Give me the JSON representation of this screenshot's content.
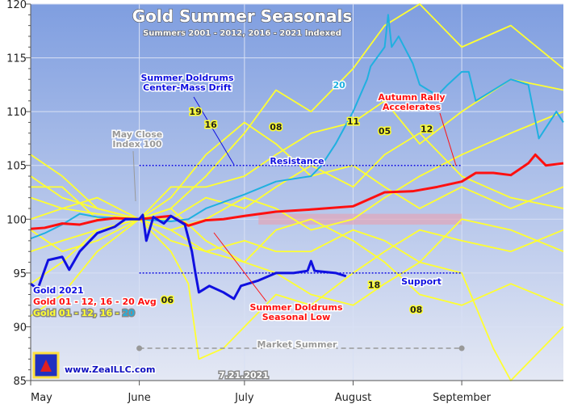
{
  "chart_data": {
    "type": "line",
    "title": "Gold Summer Seasonals",
    "subtitle": "Summers 2001 - 2012, 2016 - 2021 Indexed",
    "x_ticks": [
      {
        "date": "05-01",
        "label": "May"
      },
      {
        "date": "06-01",
        "label": "June"
      },
      {
        "date": "07-01",
        "label": "July"
      },
      {
        "date": "08-01",
        "label": "August"
      },
      {
        "date": "09-01",
        "label": "September"
      }
    ],
    "xlim": [
      "05-01",
      "09-30"
    ],
    "ylim": [
      85,
      120
    ],
    "y_ticks": [
      85,
      90,
      95,
      100,
      105,
      110,
      115,
      120
    ],
    "grid": true,
    "legend_position": "bottom-left",
    "legend": [
      {
        "text": "Gold 2021",
        "color": "#1010e0"
      },
      {
        "text": "Gold 01 - 12, 16 - 20 Avg",
        "color": "#ff1010"
      },
      {
        "text": "Gold 01 - 12, 16 - ",
        "suffix": "20",
        "color": "#ffff30",
        "suffix_color": "#20b0e0"
      }
    ],
    "series": [
      {
        "name": "Gold 2021",
        "color": "#1010e0",
        "points": [
          [
            "05-01",
            94
          ],
          [
            "05-03",
            93.5
          ],
          [
            "05-06",
            96.2
          ],
          [
            "05-10",
            96.5
          ],
          [
            "05-12",
            95.3
          ],
          [
            "05-15",
            97
          ],
          [
            "05-20",
            98.7
          ],
          [
            "05-25",
            99.3
          ],
          [
            "05-28",
            100
          ],
          [
            "06-01",
            100
          ],
          [
            "06-02",
            100.4
          ],
          [
            "06-03",
            98
          ],
          [
            "06-05",
            100.2
          ],
          [
            "06-08",
            99.6
          ],
          [
            "06-10",
            100.3
          ],
          [
            "06-14",
            99.5
          ],
          [
            "06-16",
            97
          ],
          [
            "06-17",
            95
          ],
          [
            "06-18",
            93.2
          ],
          [
            "06-21",
            93.8
          ],
          [
            "06-25",
            93.2
          ],
          [
            "06-28",
            92.6
          ],
          [
            "06-30",
            93.8
          ],
          [
            "07-05",
            94.3
          ],
          [
            "07-10",
            95
          ],
          [
            "07-15",
            95
          ],
          [
            "07-19",
            95.2
          ],
          [
            "07-20",
            96.1
          ],
          [
            "07-21",
            95.2
          ],
          [
            "07-27",
            95
          ],
          [
            "07-30",
            94.7
          ]
        ]
      },
      {
        "name": "Gold 01 - 12, 16 - 20 Avg",
        "color": "#ff1010",
        "points": [
          [
            "05-01",
            99.1
          ],
          [
            "05-05",
            99.2
          ],
          [
            "05-10",
            99.6
          ],
          [
            "05-15",
            99.5
          ],
          [
            "05-20",
            99.9
          ],
          [
            "05-25",
            100.1
          ],
          [
            "06-01",
            100
          ],
          [
            "06-10",
            100.3
          ],
          [
            "06-15",
            99.4
          ],
          [
            "06-20",
            99.9
          ],
          [
            "06-25",
            100
          ],
          [
            "07-01",
            100.3
          ],
          [
            "07-10",
            100.7
          ],
          [
            "07-20",
            100.9
          ],
          [
            "08-01",
            101.2
          ],
          [
            "08-10",
            102.5
          ],
          [
            "08-18",
            102.6
          ],
          [
            "08-25",
            103
          ],
          [
            "09-01",
            103.5
          ],
          [
            "09-05",
            104.3
          ],
          [
            "09-10",
            104.3
          ],
          [
            "09-15",
            104.1
          ],
          [
            "09-20",
            105.2
          ],
          [
            "09-22",
            106
          ],
          [
            "09-25",
            105
          ],
          [
            "09-30",
            105.2
          ]
        ]
      },
      {
        "name": "20",
        "color": "#20b0e0",
        "points": [
          [
            "05-01",
            98.2
          ],
          [
            "05-05",
            98.7
          ],
          [
            "05-10",
            99.5
          ],
          [
            "05-15",
            100.5
          ],
          [
            "05-20",
            100.2
          ],
          [
            "06-01",
            100
          ],
          [
            "06-10",
            99.8
          ],
          [
            "06-15",
            100
          ],
          [
            "06-20",
            101
          ],
          [
            "07-01",
            102.3
          ],
          [
            "07-10",
            103.5
          ],
          [
            "07-20",
            104
          ],
          [
            "07-23",
            105
          ],
          [
            "07-27",
            107
          ],
          [
            "08-01",
            110
          ],
          [
            "08-05",
            113
          ],
          [
            "08-06",
            114.2
          ],
          [
            "08-10",
            116
          ],
          [
            "08-11",
            119
          ],
          [
            "08-12",
            116
          ],
          [
            "08-14",
            117
          ],
          [
            "08-18",
            114.5
          ],
          [
            "08-20",
            112.5
          ],
          [
            "08-25",
            111.5
          ],
          [
            "08-28",
            112.5
          ],
          [
            "09-01",
            113.7
          ],
          [
            "09-03",
            113.7
          ],
          [
            "09-05",
            111
          ],
          [
            "09-15",
            113
          ],
          [
            "09-20",
            112.5
          ],
          [
            "09-23",
            107.5
          ],
          [
            "09-28",
            110
          ],
          [
            "09-30",
            109
          ]
        ]
      },
      {
        "color": "#ffff30",
        "points": [
          [
            "05-01",
            102
          ],
          [
            "05-10",
            101
          ],
          [
            "05-20",
            100.5
          ],
          [
            "06-01",
            100
          ],
          [
            "06-10",
            101
          ],
          [
            "06-20",
            104
          ],
          [
            "07-01",
            108
          ],
          [
            "07-10",
            112
          ],
          [
            "07-20",
            110
          ],
          [
            "08-01",
            114
          ],
          [
            "08-10",
            118
          ],
          [
            "08-20",
            120
          ],
          [
            "09-01",
            116
          ],
          [
            "09-15",
            118
          ],
          [
            "09-30",
            114
          ]
        ]
      },
      {
        "color": "#ffff30",
        "points": [
          [
            "05-01",
            97
          ],
          [
            "05-10",
            98
          ],
          [
            "05-20",
            99
          ],
          [
            "06-01",
            100
          ],
          [
            "06-10",
            98
          ],
          [
            "06-20",
            97
          ],
          [
            "07-01",
            96
          ],
          [
            "07-10",
            99
          ],
          [
            "07-20",
            100
          ],
          [
            "08-01",
            98
          ],
          [
            "08-10",
            96
          ],
          [
            "08-20",
            93
          ],
          [
            "09-01",
            92
          ],
          [
            "09-15",
            94
          ],
          [
            "09-30",
            92
          ]
        ]
      },
      {
        "color": "#ffff30",
        "points": [
          [
            "05-01",
            104
          ],
          [
            "05-10",
            102
          ],
          [
            "05-20",
            101
          ],
          [
            "06-01",
            100
          ],
          [
            "06-10",
            102
          ],
          [
            "06-20",
            106
          ],
          [
            "07-01",
            109
          ],
          [
            "07-10",
            107
          ],
          [
            "07-20",
            104
          ],
          [
            "08-01",
            105
          ],
          [
            "08-10",
            103
          ],
          [
            "08-20",
            101
          ],
          [
            "09-01",
            103
          ],
          [
            "09-15",
            101
          ],
          [
            "09-30",
            103
          ]
        ]
      },
      {
        "color": "#ffff30",
        "points": [
          [
            "05-01",
            94
          ],
          [
            "05-10",
            96
          ],
          [
            "05-20",
            99
          ],
          [
            "06-01",
            100
          ],
          [
            "06-10",
            97
          ],
          [
            "06-15",
            94
          ],
          [
            "06-18",
            87
          ],
          [
            "06-25",
            88
          ],
          [
            "07-01",
            90
          ],
          [
            "07-10",
            93
          ],
          [
            "07-20",
            92
          ],
          [
            "08-01",
            95
          ],
          [
            "08-10",
            97
          ],
          [
            "08-20",
            99
          ],
          [
            "09-01",
            98
          ],
          [
            "09-15",
            97
          ],
          [
            "09-30",
            99
          ]
        ]
      },
      {
        "color": "#ffff30",
        "points": [
          [
            "05-01",
            106
          ],
          [
            "05-10",
            104
          ],
          [
            "05-20",
            101
          ],
          [
            "06-01",
            100
          ],
          [
            "06-10",
            99
          ],
          [
            "06-20",
            100
          ],
          [
            "07-01",
            102
          ],
          [
            "07-10",
            101
          ],
          [
            "07-20",
            99
          ],
          [
            "08-01",
            100
          ],
          [
            "08-10",
            102
          ],
          [
            "08-20",
            104
          ],
          [
            "09-01",
            106
          ],
          [
            "09-15",
            108
          ],
          [
            "09-30",
            110
          ]
        ]
      },
      {
        "color": "#ffff30",
        "points": [
          [
            "05-01",
            91
          ],
          [
            "05-10",
            93
          ],
          [
            "05-20",
            97
          ],
          [
            "06-01",
            100
          ],
          [
            "06-10",
            101
          ],
          [
            "06-20",
            98
          ],
          [
            "07-01",
            96
          ],
          [
            "07-10",
            95
          ],
          [
            "07-20",
            93
          ],
          [
            "08-01",
            92
          ],
          [
            "08-10",
            94
          ],
          [
            "08-20",
            96
          ],
          [
            "09-01",
            95
          ],
          [
            "09-10",
            88
          ],
          [
            "09-15",
            85
          ],
          [
            "09-30",
            90
          ]
        ]
      },
      {
        "color": "#ffff30",
        "points": [
          [
            "05-01",
            100
          ],
          [
            "05-10",
            101
          ],
          [
            "05-20",
            102
          ],
          [
            "06-01",
            100
          ],
          [
            "06-10",
            103
          ],
          [
            "06-20",
            103
          ],
          [
            "07-01",
            104
          ],
          [
            "07-10",
            106
          ],
          [
            "07-20",
            108
          ],
          [
            "08-01",
            109
          ],
          [
            "08-10",
            111
          ],
          [
            "08-20",
            107
          ],
          [
            "09-01",
            110
          ],
          [
            "09-15",
            113
          ],
          [
            "09-30",
            112
          ]
        ]
      },
      {
        "color": "#ffff30",
        "points": [
          [
            "05-01",
            99
          ],
          [
            "05-10",
            97
          ],
          [
            "05-20",
            98
          ],
          [
            "06-01",
            100
          ],
          [
            "06-10",
            99
          ],
          [
            "06-20",
            97
          ],
          [
            "07-01",
            98
          ],
          [
            "07-10",
            97
          ],
          [
            "07-20",
            97
          ],
          [
            "08-01",
            99
          ],
          [
            "08-10",
            98
          ],
          [
            "08-20",
            96
          ],
          [
            "09-01",
            100
          ],
          [
            "09-15",
            99
          ],
          [
            "09-30",
            97
          ]
        ]
      },
      {
        "color": "#ffff30",
        "points": [
          [
            "05-01",
            103
          ],
          [
            "05-10",
            103
          ],
          [
            "05-20",
            100
          ],
          [
            "06-01",
            100
          ],
          [
            "06-10",
            100
          ],
          [
            "06-20",
            102
          ],
          [
            "07-01",
            101
          ],
          [
            "07-10",
            103
          ],
          [
            "07-20",
            105
          ],
          [
            "08-01",
            103
          ],
          [
            "08-10",
            106
          ],
          [
            "08-20",
            108
          ],
          [
            "09-01",
            104
          ],
          [
            "09-15",
            102
          ],
          [
            "09-30",
            101
          ]
        ]
      }
    ],
    "annotations": [
      {
        "text": "Summer Doldrums",
        "text2": "Center-Mass Drift",
        "color": "#1010e0"
      },
      {
        "text": "May Close",
        "text2": "Index 100",
        "color": "#999999"
      },
      {
        "text": "Resistance",
        "color": "#1010e0"
      },
      {
        "text": "Support",
        "color": "#1010e0"
      },
      {
        "text": "Autumn Rally",
        "text2": "Accelerates",
        "color": "#ff1010"
      },
      {
        "text": "Summer Doldrums",
        "text2": "Seasonal Low",
        "color": "#ff1010"
      },
      {
        "text": "Market Summer",
        "color": "#999999"
      },
      {
        "text": "7.21.2021",
        "color": "#ffffff"
      }
    ],
    "resistance_level": 105,
    "support_level": 95,
    "market_summer_level": 88,
    "year_labels": [
      {
        "text": "19",
        "date": "06-17",
        "y": 109.7
      },
      {
        "text": "16",
        "date": "06-20",
        "y": 108.8
      },
      {
        "text": "08",
        "date": "07-10",
        "y": 108.3
      },
      {
        "text": "11",
        "date": "08-01",
        "y": 108.8
      },
      {
        "text": "05",
        "date": "08-10",
        "y": 107.9
      },
      {
        "text": "12",
        "date": "08-22",
        "y": 108.1
      },
      {
        "text": "20",
        "date": "07-28",
        "y": 112.2
      },
      {
        "text": "18",
        "date": "08-07",
        "y": 93.6
      },
      {
        "text": "08",
        "date": "08-19",
        "y": 91.3
      },
      {
        "text": "06",
        "date": "06-09",
        "y": 92.2
      }
    ],
    "watermark": "www.ZealLLC.com"
  }
}
